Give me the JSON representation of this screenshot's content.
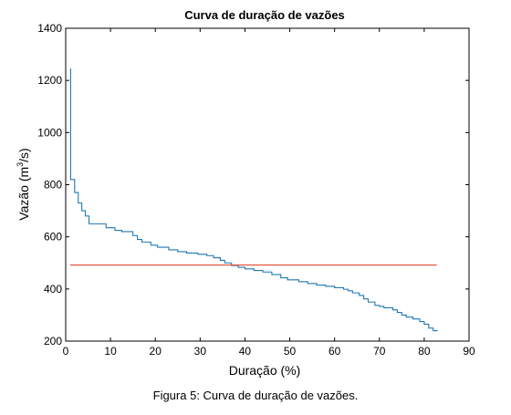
{
  "caption": "Figura 5: Curva de duração de vazões.",
  "colors": {
    "series": "#1f77b4",
    "reference": "#e34a33",
    "axis": "#000000"
  },
  "chart_data": {
    "type": "line",
    "title": "Curva de duração de vazões",
    "xlabel": "Duração (%)",
    "ylabel_main": "Vazão (m",
    "ylabel_sup": "3",
    "ylabel_tail": "/s)",
    "xlim": [
      0,
      90
    ],
    "ylim": [
      200,
      1400
    ],
    "xticks": [
      0,
      10,
      20,
      30,
      40,
      50,
      60,
      70,
      80,
      90
    ],
    "yticks": [
      200,
      400,
      600,
      800,
      1000,
      1200,
      1400
    ],
    "grid": false,
    "series": [
      {
        "values": [
          [
            1.1,
            1245
          ],
          [
            1.1,
            1100
          ],
          [
            1.1,
            820
          ],
          [
            2.0,
            820
          ],
          [
            2.0,
            770
          ],
          [
            2.8,
            770
          ],
          [
            2.8,
            730
          ],
          [
            3.6,
            730
          ],
          [
            3.6,
            700
          ],
          [
            4.4,
            700
          ],
          [
            4.4,
            680
          ],
          [
            5.2,
            680
          ],
          [
            5.2,
            650
          ],
          [
            9.0,
            650
          ],
          [
            9.0,
            635
          ],
          [
            11.0,
            635
          ],
          [
            11.0,
            625
          ],
          [
            12.5,
            625
          ],
          [
            12.5,
            620
          ],
          [
            15.0,
            620
          ],
          [
            15.0,
            605
          ],
          [
            16.0,
            605
          ],
          [
            16.0,
            590
          ],
          [
            17.0,
            590
          ],
          [
            17.0,
            580
          ],
          [
            19.0,
            580
          ],
          [
            19.0,
            568
          ],
          [
            20.5,
            568
          ],
          [
            20.5,
            560
          ],
          [
            23.0,
            560
          ],
          [
            23.0,
            550
          ],
          [
            25.0,
            550
          ],
          [
            25.0,
            543
          ],
          [
            27.0,
            543
          ],
          [
            27.0,
            538
          ],
          [
            29.5,
            538
          ],
          [
            29.5,
            533
          ],
          [
            31.5,
            533
          ],
          [
            31.5,
            528
          ],
          [
            33.0,
            528
          ],
          [
            33.0,
            520
          ],
          [
            34.5,
            520
          ],
          [
            34.5,
            510
          ],
          [
            35.5,
            510
          ],
          [
            35.5,
            500
          ],
          [
            37.0,
            500
          ],
          [
            37.0,
            490
          ],
          [
            38.5,
            490
          ],
          [
            38.5,
            483
          ],
          [
            40.0,
            483
          ],
          [
            40.0,
            477
          ],
          [
            42.0,
            477
          ],
          [
            42.0,
            471
          ],
          [
            44.0,
            471
          ],
          [
            44.0,
            465
          ],
          [
            46.0,
            465
          ],
          [
            46.0,
            455
          ],
          [
            48.0,
            455
          ],
          [
            48.0,
            443
          ],
          [
            49.5,
            443
          ],
          [
            49.5,
            435
          ],
          [
            52.0,
            435
          ],
          [
            52.0,
            428
          ],
          [
            54.0,
            428
          ],
          [
            54.0,
            421
          ],
          [
            56.0,
            421
          ],
          [
            56.0,
            415
          ],
          [
            58.0,
            415
          ],
          [
            58.0,
            410
          ],
          [
            60.0,
            410
          ],
          [
            60.0,
            405
          ],
          [
            62.0,
            405
          ],
          [
            62.0,
            399
          ],
          [
            63.0,
            399
          ],
          [
            63.0,
            393
          ],
          [
            64.0,
            393
          ],
          [
            64.0,
            385
          ],
          [
            65.5,
            385
          ],
          [
            65.5,
            375
          ],
          [
            66.5,
            375
          ],
          [
            66.5,
            362
          ],
          [
            67.5,
            362
          ],
          [
            67.5,
            350
          ],
          [
            69.0,
            350
          ],
          [
            69.0,
            337
          ],
          [
            70.0,
            337
          ],
          [
            70.0,
            333
          ],
          [
            71.0,
            333
          ],
          [
            71.0,
            328
          ],
          [
            73.0,
            328
          ],
          [
            73.0,
            320
          ],
          [
            74.0,
            320
          ],
          [
            74.0,
            310
          ],
          [
            75.0,
            310
          ],
          [
            75.0,
            300
          ],
          [
            76.0,
            300
          ],
          [
            76.0,
            292
          ],
          [
            77.5,
            292
          ],
          [
            77.5,
            285
          ],
          [
            79.0,
            285
          ],
          [
            79.0,
            275
          ],
          [
            80.0,
            275
          ],
          [
            80.0,
            265
          ],
          [
            81.0,
            265
          ],
          [
            81.0,
            250
          ],
          [
            82.0,
            250
          ],
          [
            82.0,
            240
          ],
          [
            83.0,
            240
          ]
        ]
      },
      {
        "values": [
          [
            1.0,
            492
          ],
          [
            82.8,
            492
          ]
        ]
      }
    ]
  }
}
